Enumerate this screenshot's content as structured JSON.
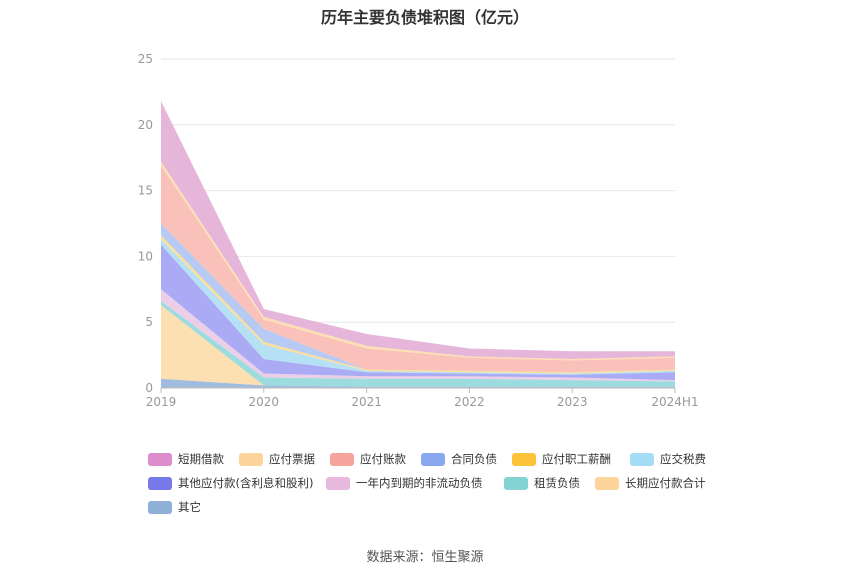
{
  "title": "历年主要负债堆积图（亿元）",
  "source": "数据来源：恒生聚源",
  "chart_data": {
    "type": "area",
    "stacked": true,
    "categories": [
      "2019",
      "2020",
      "2021",
      "2022",
      "2023",
      "2024H1"
    ],
    "ylim": [
      0,
      25
    ],
    "yticks": [
      0,
      5,
      10,
      15,
      20,
      25
    ],
    "grid": true,
    "legend_position": "bottom",
    "series": [
      {
        "name": "其它",
        "color": "#8fb0d8",
        "values": [
          0.7,
          0.2,
          0.1,
          0.1,
          0.1,
          0.1
        ]
      },
      {
        "name": "长期应付款合计",
        "color": "#fcdba3",
        "values": [
          5.6,
          0.0,
          0.0,
          0.0,
          0.0,
          0.0
        ]
      },
      {
        "name": "租赁负债",
        "color": "#8bd6d8",
        "values": [
          0.3,
          0.6,
          0.6,
          0.6,
          0.5,
          0.4
        ]
      },
      {
        "name": "一年内到期的非流动负债",
        "color": "#e8c6e4",
        "values": [
          0.9,
          0.3,
          0.2,
          0.2,
          0.2,
          0.1
        ]
      },
      {
        "name": "其他应付款(含利息和股利)",
        "color": "#9b9cf2",
        "values": [
          3.4,
          1.1,
          0.3,
          0.2,
          0.2,
          0.6
        ]
      },
      {
        "name": "应交税费",
        "color": "#a9dcf3",
        "values": [
          0.4,
          1.1,
          0.1,
          0.1,
          0.1,
          0.1
        ]
      },
      {
        "name": "应付职工薪酬",
        "color": "#fdd98a",
        "values": [
          0.3,
          0.2,
          0.1,
          0.1,
          0.1,
          0.1
        ]
      },
      {
        "name": "合同负债",
        "color": "#a9c1f2",
        "values": [
          0.9,
          1.0,
          0.0,
          0.0,
          0.0,
          0.0
        ]
      },
      {
        "name": "应付账款",
        "color": "#f9b6ae",
        "values": [
          4.4,
          0.7,
          1.6,
          1.0,
          0.9,
          0.9
        ]
      },
      {
        "name": "应付票据",
        "color": "#fcd9a6",
        "values": [
          0.3,
          0.2,
          0.2,
          0.1,
          0.1,
          0.1
        ]
      },
      {
        "name": "短期借款",
        "color": "#e2a9d4",
        "values": [
          4.6,
          0.6,
          0.9,
          0.6,
          0.6,
          0.4
        ]
      }
    ],
    "legend_rows": [
      [
        {
          "name": "短期借款",
          "color": "#dd8ccc"
        },
        {
          "name": "应付票据",
          "color": "#fdd49b"
        },
        {
          "name": "应付账款",
          "color": "#f6a49b"
        },
        {
          "name": "合同负债",
          "color": "#8aa8f0"
        },
        {
          "name": "应付职工薪酬",
          "color": "#fcc23a"
        },
        {
          "name": "应交税费",
          "color": "#a4dcf6"
        }
      ],
      [
        {
          "name": "其他应付款(含利息和股利)",
          "color": "#7779e9"
        },
        {
          "name": "一年内到期的非流动负债",
          "color": "#e8b9df"
        },
        {
          "name": "租赁负债",
          "color": "#83d3d4"
        },
        {
          "name": "长期应付款合计",
          "color": "#fdd49b"
        }
      ],
      [
        {
          "name": "其它",
          "color": "#8fb0d8"
        }
      ]
    ]
  }
}
